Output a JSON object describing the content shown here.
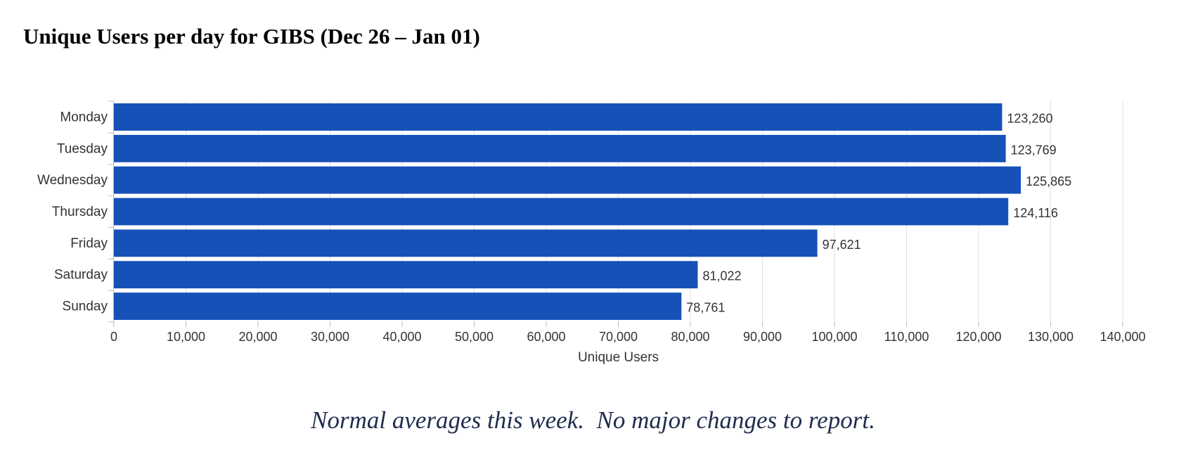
{
  "page": {
    "title": "Unique Users per day for GIBS (Dec 26 – Jan 01)",
    "note": "Normal averages this week.  No major changes to report."
  },
  "colors": {
    "bar": "#1651b7",
    "axis_text": "#333333",
    "grid": "#e0e0e0",
    "note": "#1f2d4d"
  },
  "chart_data": {
    "type": "bar",
    "orientation": "horizontal",
    "title": "Unique Users per day for GIBS (Dec 26 – Jan 01)",
    "xlabel": "Unique Users",
    "ylabel": "",
    "categories": [
      "Monday",
      "Tuesday",
      "Wednesday",
      "Thursday",
      "Friday",
      "Saturday",
      "Sunday"
    ],
    "values": [
      123260,
      123769,
      125865,
      124116,
      97621,
      81022,
      78761
    ],
    "value_labels": [
      "123,260",
      "123,769",
      "125,865",
      "124,116",
      "97,621",
      "81,022",
      "78,761"
    ],
    "xlim": [
      0,
      140000
    ],
    "xticks": [
      0,
      10000,
      20000,
      30000,
      40000,
      50000,
      60000,
      70000,
      80000,
      90000,
      100000,
      110000,
      120000,
      130000,
      140000
    ],
    "xtick_labels": [
      "0",
      "10,000",
      "20,000",
      "30,000",
      "40,000",
      "50,000",
      "60,000",
      "70,000",
      "80,000",
      "90,000",
      "100,000",
      "110,000",
      "120,000",
      "130,000",
      "140,000"
    ],
    "grid": true,
    "legend": "none"
  }
}
